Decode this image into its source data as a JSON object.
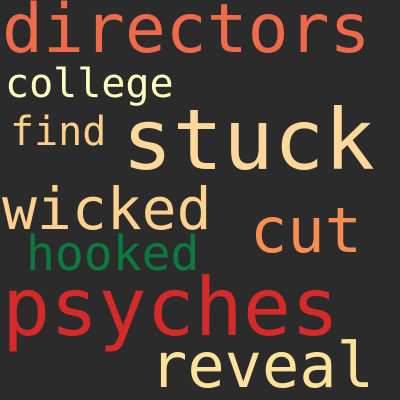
{
  "colors": {
    "background": "#2b2b2b"
  },
  "words": [
    {
      "id": "w-directors",
      "text": "directors",
      "color": "#ee6a4a"
    },
    {
      "id": "w-college",
      "text": "college",
      "color": "#ffffbf"
    },
    {
      "id": "w-stuck",
      "text": "stuck",
      "color": "#fed89a"
    },
    {
      "id": "w-find",
      "text": "find",
      "color": "#fdd08a"
    },
    {
      "id": "w-wicked",
      "text": "wicked",
      "color": "#fed18f"
    },
    {
      "id": "w-cut",
      "text": "cut",
      "color": "#f98e52"
    },
    {
      "id": "w-hooked",
      "text": "hooked",
      "color": "#0a7a3e"
    },
    {
      "id": "w-psyches",
      "text": "psyches",
      "color": "#d42a2a"
    },
    {
      "id": "w-reveal",
      "text": "reveal",
      "color": "#fee29b"
    }
  ]
}
